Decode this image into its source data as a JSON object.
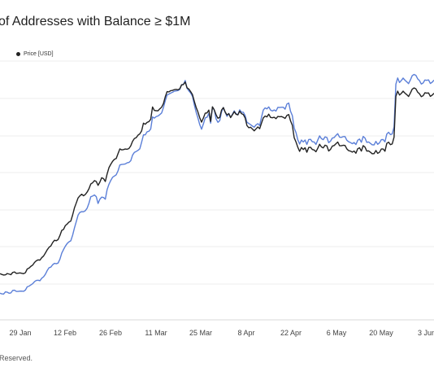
{
  "title": "of Addresses with Balance ≥ $1M",
  "footer": "Reserved.",
  "colors": {
    "addresses": "#5b7fd8",
    "price": "#222222",
    "grid": "#ececec"
  },
  "chart_data": {
    "type": "line",
    "legend": {
      "placement": "top-left",
      "entries": [
        "Price [USD]"
      ]
    },
    "x_ticks": [
      "29 Jan",
      "12 Feb",
      "26 Feb",
      "11 Mar",
      "25 Mar",
      "8 Apr",
      "22 Apr",
      "6 May",
      "20 May",
      "3 Jun"
    ],
    "grid": "horizontal",
    "series": [
      {
        "name": "",
        "color": "#5b7fd8",
        "values": [
          57.6,
          56.2,
          55.9,
          60.7,
          59.8,
          57.6,
          58.3,
          63.6,
          64.1,
          61.5,
          61.5,
          62.2,
          62.1,
          61.7,
          64.5,
          71.5,
          72.9,
          75.6,
          78.3,
          82.6,
          85.3,
          85.7,
          84.6,
          90.1,
          93.1,
          98.7,
          106.7,
          112.8,
          114.1,
          119.3,
          122.2,
          121.4,
          122.9,
          131.3,
          144.3,
          152.3,
          159.5,
          165.2,
          168.8,
          171.1,
          183.3,
          198.9,
          212.5,
          226.7,
          232.6,
          234.1,
          233.9,
          236.2,
          241.8,
          252.5,
          266.4,
          267.9,
          270.2,
          266.6,
          251.8,
          261.1,
          265.5,
          264.7,
          261.1,
          281.9,
          293.4,
          301.6,
          308.5,
          311.2,
          313.9,
          322.5,
          335.2,
          336.3,
          336.7,
          337.3,
          339.8,
          340.6,
          344.2,
          356.5,
          362.4,
          364.4,
          366.7,
          370.1,
          384.6,
          400.2,
          400.5,
          406.9,
          408.1,
          413.1,
          439.0,
          436.5,
          439.8,
          441.1,
          444.1,
          447.5,
          459.5,
          474.1,
          486.4,
          488.4,
          490.6,
          492.4,
          494.7,
          495.4,
          496.0,
          498.5,
          508.8,
          509.2,
          517.9,
          501.0,
          495.5,
          490.8,
          483.6,
          465.5,
          449.5,
          436.8,
          422.4,
          412.5,
          423.9,
          436.9,
          438.4,
          446.7,
          425.6,
          460.5,
          454.4,
          434.9,
          427.4,
          431.0,
          450.0,
          459.5,
          449.1,
          440.3,
          446.7,
          437.6,
          444.9,
          452.2,
          446.0,
          443.4,
          454.5,
          449.3,
          449.2,
          441.9,
          427.4,
          425.0,
          422.3,
          419.3,
          416.9,
          421.9,
          424.5,
          420.5,
          438.4,
          454.0,
          458.6,
          456.5,
          460.8,
          453.9,
          452.0,
          454.1,
          451.7,
          459.8,
          459.5,
          459.9,
          460.0,
          455.9,
          467.0,
          469.1,
          451.3,
          441.8,
          415.1,
          405.3,
          389.5,
          380.4,
          389.1,
          384.9,
          389.1,
          379.6,
          390.1,
          390.6,
          385.4,
          384.9,
          379.6,
          389.1,
          398.1,
          392.1,
          389.9,
          395.9,
          394.7,
          383.4,
          386.6,
          393.3,
          394.3,
          399.0,
          402.8,
          395.3,
          394.9,
          396.5,
          396.6,
          388.6,
          385.3,
          383.6,
          381.3,
          383.7,
          379.4,
          388.6,
          391.2,
          384.2,
          396.8,
          393.4,
          384.0,
          384.8,
          381.8,
          378.7,
          378.6,
          386.2,
          379.8,
          383.1,
          390.0,
          390.1,
          385.2,
          402.0,
          405.9,
          401.0,
          402.2,
          417.2,
          509.9,
          523.3,
          513.6,
          517.9,
          523.2,
          518.6,
          515.0,
          511.2,
          519.1,
          528.4,
          531.0,
          529.2,
          521.5,
          517.7,
          510.3,
          512.4,
          519.0,
          518.3,
          519.1,
          511.5,
          514.2,
          518.7
        ]
      },
      {
        "name": "Price [USD]",
        "color": "#222222",
        "values": [
          45100,
          44500,
          44000,
          44200,
          45200,
          44800,
          44300,
          46100,
          46500,
          45300,
          45500,
          45700,
          45400,
          45100,
          45900,
          48900,
          49600,
          51000,
          52000,
          54100,
          55500,
          56200,
          56000,
          58000,
          59300,
          61700,
          64300,
          66300,
          67400,
          70100,
          72000,
          71600,
          72500,
          75800,
          79900,
          80700,
          83800,
          85000,
          86600,
          87400,
          92300,
          98000,
          101900,
          106000,
          107700,
          109000,
          107700,
          108800,
          110700,
          113400,
          117200,
          118200,
          119900,
          119200,
          116100,
          118700,
          122200,
          121500,
          119200,
          125300,
          130300,
          133000,
          135400,
          137000,
          137700,
          141600,
          145400,
          144600,
          144800,
          145300,
          145100,
          145700,
          147800,
          151500,
          153700,
          154400,
          156400,
          157500,
          159900,
          166100,
          165200,
          166700,
          167300,
          169200,
          179100,
          176300,
          176100,
          176000,
          177600,
          178900,
          181800,
          187200,
          191400,
          191200,
          192200,
          192400,
          193000,
          193200,
          192900,
          193700,
          196800,
          197100,
          199100,
          194500,
          193500,
          191400,
          189000,
          183700,
          178800,
          175100,
          170400,
          166900,
          170200,
          174100,
          174300,
          176600,
          167500,
          179200,
          176700,
          172800,
          170000,
          170800,
          176600,
          178600,
          175000,
          172700,
          173700,
          170600,
          172800,
          175300,
          173200,
          172800,
          175700,
          173700,
          173000,
          170300,
          164100,
          162400,
          162800,
          161400,
          159900,
          161500,
          163000,
          161600,
          166100,
          170300,
          171800,
          171100,
          173300,
          170700,
          170400,
          170800,
          169700,
          171500,
          171200,
          171400,
          170800,
          169900,
          172300,
          173000,
          167900,
          164300,
          154400,
          151000,
          146700,
          143400,
          146500,
          144900,
          146300,
          142700,
          146500,
          146700,
          144900,
          144500,
          143100,
          145900,
          149100,
          147000,
          146200,
          148400,
          147800,
          143700,
          145000,
          147600,
          148100,
          149500,
          150900,
          147900,
          147900,
          148300,
          148200,
          145400,
          144000,
          143600,
          142800,
          143700,
          141900,
          145500,
          146300,
          143600,
          148000,
          146800,
          143600,
          143800,
          142700,
          141500,
          141600,
          144100,
          141800,
          142700,
          145300,
          145300,
          143500,
          149800,
          150800,
          148800,
          149400,
          154800,
          187600,
          191800,
          188700,
          190000,
          191800,
          190200,
          189000,
          187500,
          190300,
          193400,
          194400,
          193700,
          191000,
          189700,
          187400,
          188100,
          190500,
          190200,
          190400,
          187600,
          188600,
          190100
        ]
      }
    ]
  }
}
